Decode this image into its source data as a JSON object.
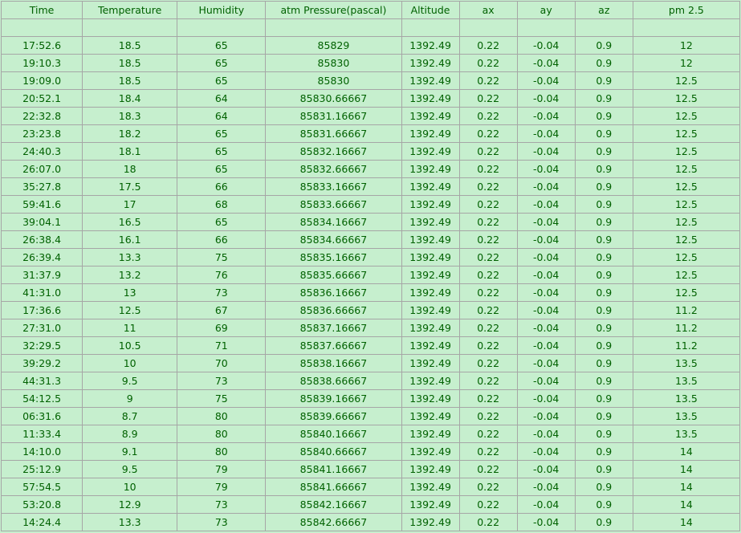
{
  "headers": [
    "Time",
    "Temperature",
    "Humidity",
    "atm Pressure(pascal)",
    "Altitude",
    "ax",
    "ay",
    "az",
    "pm 2.5"
  ],
  "rows": [
    [
      "17:52.6",
      "18.5",
      "65",
      "85829",
      "1392.49",
      "0.22",
      "-0.04",
      "0.9",
      "12"
    ],
    [
      "19:10.3",
      "18.5",
      "65",
      "85830",
      "1392.49",
      "0.22",
      "-0.04",
      "0.9",
      "12"
    ],
    [
      "19:09.0",
      "18.5",
      "65",
      "85830",
      "1392.49",
      "0.22",
      "-0.04",
      "0.9",
      "12.5"
    ],
    [
      "20:52.1",
      "18.4",
      "64",
      "85830.66667",
      "1392.49",
      "0.22",
      "-0.04",
      "0.9",
      "12.5"
    ],
    [
      "22:32.8",
      "18.3",
      "64",
      "85831.16667",
      "1392.49",
      "0.22",
      "-0.04",
      "0.9",
      "12.5"
    ],
    [
      "23:23.8",
      "18.2",
      "65",
      "85831.66667",
      "1392.49",
      "0.22",
      "-0.04",
      "0.9",
      "12.5"
    ],
    [
      "24:40.3",
      "18.1",
      "65",
      "85832.16667",
      "1392.49",
      "0.22",
      "-0.04",
      "0.9",
      "12.5"
    ],
    [
      "26:07.0",
      "18",
      "65",
      "85832.66667",
      "1392.49",
      "0.22",
      "-0.04",
      "0.9",
      "12.5"
    ],
    [
      "35:27.8",
      "17.5",
      "66",
      "85833.16667",
      "1392.49",
      "0.22",
      "-0.04",
      "0.9",
      "12.5"
    ],
    [
      "59:41.6",
      "17",
      "68",
      "85833.66667",
      "1392.49",
      "0.22",
      "-0.04",
      "0.9",
      "12.5"
    ],
    [
      "39:04.1",
      "16.5",
      "65",
      "85834.16667",
      "1392.49",
      "0.22",
      "-0.04",
      "0.9",
      "12.5"
    ],
    [
      "26:38.4",
      "16.1",
      "66",
      "85834.66667",
      "1392.49",
      "0.22",
      "-0.04",
      "0.9",
      "12.5"
    ],
    [
      "26:39.4",
      "13.3",
      "75",
      "85835.16667",
      "1392.49",
      "0.22",
      "-0.04",
      "0.9",
      "12.5"
    ],
    [
      "31:37.9",
      "13.2",
      "76",
      "85835.66667",
      "1392.49",
      "0.22",
      "-0.04",
      "0.9",
      "12.5"
    ],
    [
      "41:31.0",
      "13",
      "73",
      "85836.16667",
      "1392.49",
      "0.22",
      "-0.04",
      "0.9",
      "12.5"
    ],
    [
      "17:36.6",
      "12.5",
      "67",
      "85836.66667",
      "1392.49",
      "0.22",
      "-0.04",
      "0.9",
      "11.2"
    ],
    [
      "27:31.0",
      "11",
      "69",
      "85837.16667",
      "1392.49",
      "0.22",
      "-0.04",
      "0.9",
      "11.2"
    ],
    [
      "32:29.5",
      "10.5",
      "71",
      "85837.66667",
      "1392.49",
      "0.22",
      "-0.04",
      "0.9",
      "11.2"
    ],
    [
      "39:29.2",
      "10",
      "70",
      "85838.16667",
      "1392.49",
      "0.22",
      "-0.04",
      "0.9",
      "13.5"
    ],
    [
      "44:31.3",
      "9.5",
      "73",
      "85838.66667",
      "1392.49",
      "0.22",
      "-0.04",
      "0.9",
      "13.5"
    ],
    [
      "54:12.5",
      "9",
      "75",
      "85839.16667",
      "1392.49",
      "0.22",
      "-0.04",
      "0.9",
      "13.5"
    ],
    [
      "06:31.6",
      "8.7",
      "80",
      "85839.66667",
      "1392.49",
      "0.22",
      "-0.04",
      "0.9",
      "13.5"
    ],
    [
      "11:33.4",
      "8.9",
      "80",
      "85840.16667",
      "1392.49",
      "0.22",
      "-0.04",
      "0.9",
      "13.5"
    ],
    [
      "14:10.0",
      "9.1",
      "80",
      "85840.66667",
      "1392.49",
      "0.22",
      "-0.04",
      "0.9",
      "14"
    ],
    [
      "25:12.9",
      "9.5",
      "79",
      "85841.16667",
      "1392.49",
      "0.22",
      "-0.04",
      "0.9",
      "14"
    ],
    [
      "57:54.5",
      "10",
      "79",
      "85841.66667",
      "1392.49",
      "0.22",
      "-0.04",
      "0.9",
      "14"
    ],
    [
      "53:20.8",
      "12.9",
      "73",
      "85842.16667",
      "1392.49",
      "0.22",
      "-0.04",
      "0.9",
      "14"
    ],
    [
      "14:24.4",
      "13.3",
      "73",
      "85842.66667",
      "1392.49",
      "0.22",
      "-0.04",
      "0.9",
      "14"
    ]
  ],
  "colors": {
    "cell_fill": "#c6efce",
    "cell_text": "#006100",
    "grid": "#a6a6a6"
  }
}
